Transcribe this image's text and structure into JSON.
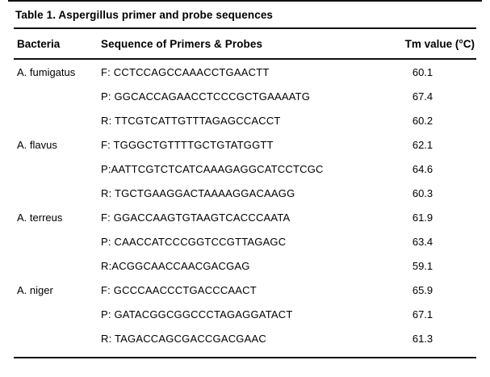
{
  "title": "Table 1. Aspergillus primer and probe sequences",
  "table": {
    "headers": [
      "Bacteria",
      "Sequence of Primers & Probes",
      "Tm value (°C)"
    ],
    "groups": [
      {
        "bacteria": "A. fumigatus",
        "rows": [
          {
            "sequence": "F: CCTCCAGCCAAACCTGAACTT",
            "tm": "60.1"
          },
          {
            "sequence": "P: GGCACCAGAACCTCCCGCTGAAAATG",
            "tm": "67.4"
          },
          {
            "sequence": "R: TTCGTCATTGTTTAGAGCCACCT",
            "tm": "60.2"
          }
        ]
      },
      {
        "bacteria": "A. flavus",
        "rows": [
          {
            "sequence": "F: TGGGCTGTTTTGCTGTATGGTT",
            "tm": "62.1"
          },
          {
            "sequence": "P:AATTCGTCTCATCAAAGAGGCATCCTCGC",
            "tm": "64.6"
          },
          {
            "sequence": "R: TGCTGAAGGACTAAAAGGACAAGG",
            "tm": "60.3"
          }
        ]
      },
      {
        "bacteria": "A. terreus",
        "rows": [
          {
            "sequence": "F: GGACCAAGTGTAAGTCACCCAATA",
            "tm": "61.9"
          },
          {
            "sequence": "P: CAACCATCCCGGTCCGTTAGAGC",
            "tm": "63.4"
          },
          {
            "sequence": "R:ACGGCAACCAACGACGAG",
            "tm": "59.1"
          }
        ]
      },
      {
        "bacteria": "A. niger",
        "rows": [
          {
            "sequence": "F: GCCCAACCCTGACCCAACT",
            "tm": "65.9"
          },
          {
            "sequence": "P: GATACGGCGGCCCTAGAGGATACT",
            "tm": "67.1"
          },
          {
            "sequence": "R: TAGACCAGCGACCGACGAAC",
            "tm": "61.3"
          }
        ]
      }
    ]
  },
  "colors": {
    "text": "#000000",
    "rule": "#111111",
    "background": "#ffffff"
  }
}
